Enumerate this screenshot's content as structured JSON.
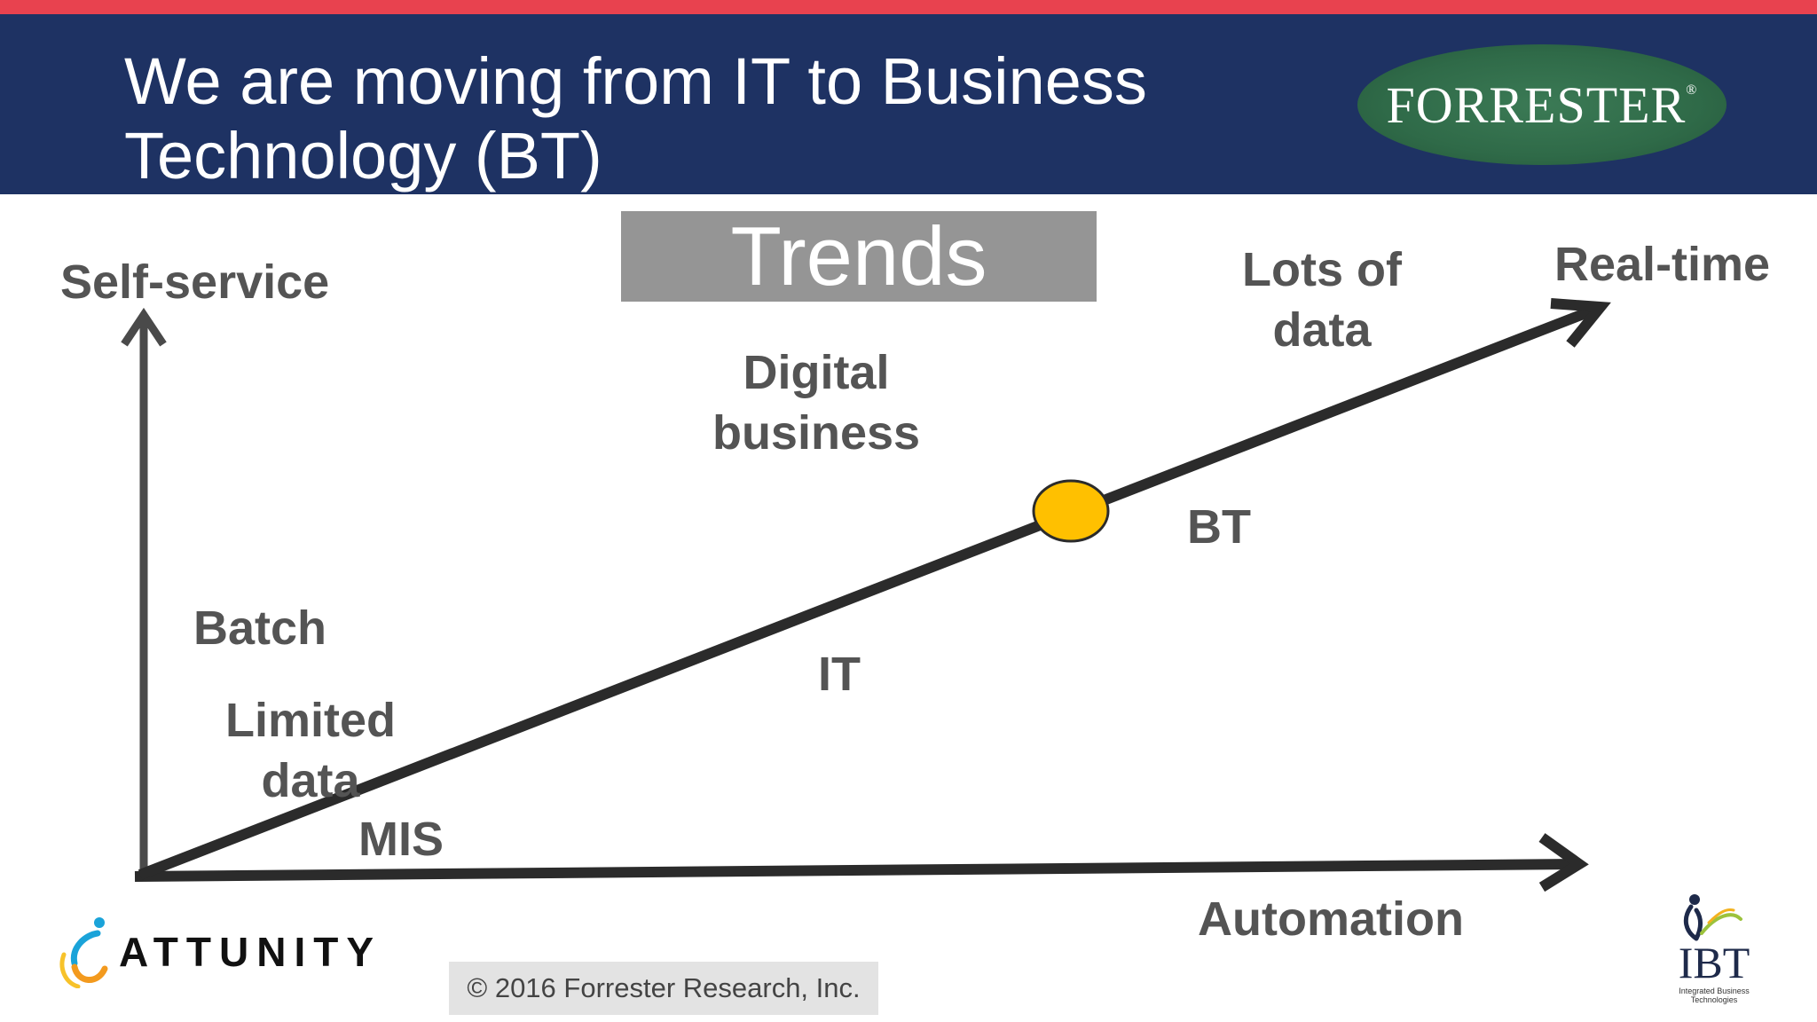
{
  "header": {
    "title_line1": "We are moving from IT to Business",
    "title_line2": "Technology (BT)",
    "logo_text": "FORRESTER",
    "logo_mark": "®"
  },
  "trends_label": "Trends",
  "diagram": {
    "y_axis_label": "Self-service",
    "x_axis_label": "Automation",
    "endpoint_label": "Real-time",
    "labels": {
      "lots_of_data_line1": "Lots of",
      "lots_of_data_line2": "data",
      "digital_business_line1": "Digital",
      "digital_business_line2": "business",
      "bt": "BT",
      "it": "IT",
      "batch": "Batch",
      "limited_data_line1": "Limited",
      "limited_data_line2": "data",
      "mis": "MIS"
    },
    "colors": {
      "arrow": "#2b2b2b",
      "marker": "#ffc000",
      "label": "#545454"
    }
  },
  "footer": {
    "attunity_text": "ATTUNITY",
    "copyright": "© 2016 Forrester Research, Inc.",
    "ibt_text": "IBT",
    "ibt_sub": "Integrated Business Technologies"
  },
  "colors": {
    "top_strip": "#e8424f",
    "header_bg": "#1e3263",
    "trends_bg": "#959595",
    "logo_green": "#2f6a48"
  }
}
